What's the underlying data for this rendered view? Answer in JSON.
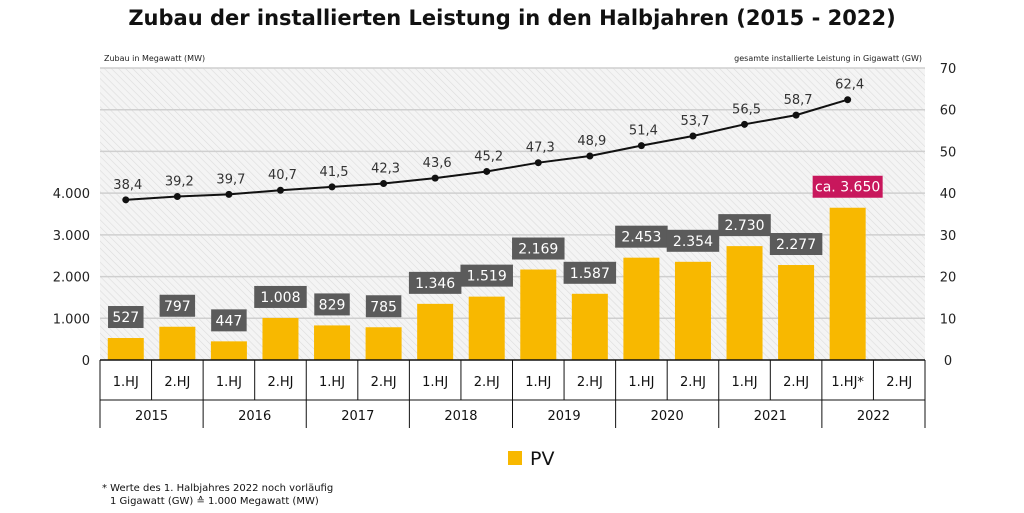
{
  "chart_data": {
    "type": "bar+line",
    "title": "Zubau der installierten Leistung in den Halbjahren (2015 - 2022)",
    "ylabel_left": "Zubau in Megawatt (MW)",
    "ylabel_right": "gesamte installierte Leistung in Gigawatt (GW)",
    "left_ticks": [
      "0",
      "1.000",
      "2.000",
      "3.000",
      "4.000"
    ],
    "right_ticks": [
      "0",
      "10",
      "20",
      "30",
      "40",
      "50",
      "60",
      "70"
    ],
    "ylim_left": [
      0,
      7000
    ],
    "ylim_right": [
      0,
      70
    ],
    "halfyears": [
      "1.HJ",
      "2.HJ",
      "1.HJ",
      "2.HJ",
      "1.HJ",
      "2.HJ",
      "1.HJ",
      "2.HJ",
      "1.HJ",
      "2.HJ",
      "1.HJ",
      "2.HJ",
      "1.HJ",
      "2.HJ",
      "1.HJ*",
      "2.HJ"
    ],
    "years": [
      "2015",
      "2016",
      "2017",
      "2018",
      "2019",
      "2020",
      "2021",
      "2022"
    ],
    "bars": {
      "name": "PV",
      "color": "#f8b800",
      "values": [
        527,
        797,
        447,
        1008,
        829,
        785,
        1346,
        1519,
        2169,
        1587,
        2453,
        2354,
        2730,
        2277,
        3650,
        null
      ],
      "labels": [
        "527",
        "797",
        "447",
        "1.008",
        "829",
        "785",
        "1.346",
        "1.519",
        "2.169",
        "1.587",
        "2.453",
        "2.354",
        "2.730",
        "2.277",
        "ca. 3.650",
        ""
      ]
    },
    "line": {
      "values": [
        38.4,
        39.2,
        39.7,
        40.7,
        41.5,
        42.3,
        43.6,
        45.2,
        47.3,
        48.9,
        51.4,
        53.7,
        56.5,
        58.7,
        62.4,
        null
      ],
      "labels": [
        "38,4",
        "39,2",
        "39,7",
        "40,7",
        "41,5",
        "42,3",
        "43,6",
        "45,2",
        "47,3",
        "48,9",
        "51,4",
        "53,7",
        "56,5",
        "58,7",
        "62,4",
        ""
      ]
    },
    "label_box_color": "#5b5b5b",
    "highlight_box_color": "#c8175c",
    "legend": "PV",
    "legend_placement": "bottom",
    "grid": true
  },
  "footnote": {
    "line1": "* Werte des 1. Halbjahres 2022 noch vorläufig",
    "line2": "1 Gigawatt (GW) ≙ 1.000 Megawatt (MW)"
  }
}
